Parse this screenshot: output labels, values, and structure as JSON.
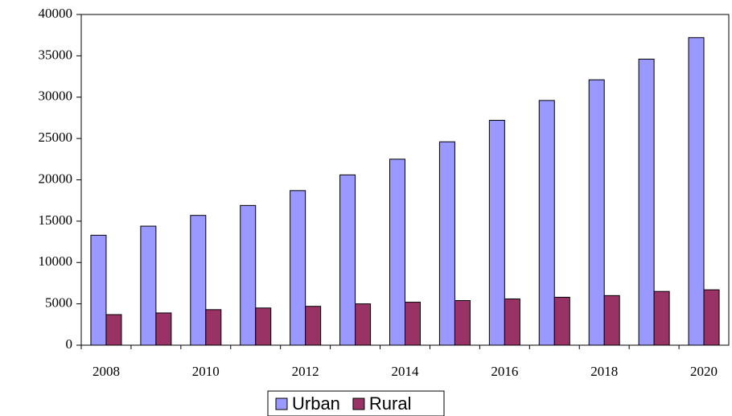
{
  "chart_data": {
    "type": "bar",
    "categories": [
      "2008",
      null,
      "2010",
      null,
      "2012",
      null,
      "2014",
      null,
      "2016",
      null,
      "2018",
      null,
      "2020"
    ],
    "series": [
      {
        "name": "Urban",
        "color": "#9999ff",
        "values": [
          13300,
          14400,
          15700,
          16900,
          18700,
          20600,
          22500,
          24600,
          27200,
          29600,
          32100,
          34600,
          37200
        ]
      },
      {
        "name": "Rural",
        "color": "#993366",
        "values": [
          3700,
          3900,
          4300,
          4500,
          4700,
          5000,
          5200,
          5400,
          5600,
          5800,
          6000,
          6500,
          6700
        ]
      }
    ],
    "ylim": [
      0,
      40000
    ],
    "yticks": [
      0,
      5000,
      10000,
      15000,
      20000,
      25000,
      30000,
      35000,
      40000
    ],
    "grid": false,
    "legend": "bottom"
  }
}
